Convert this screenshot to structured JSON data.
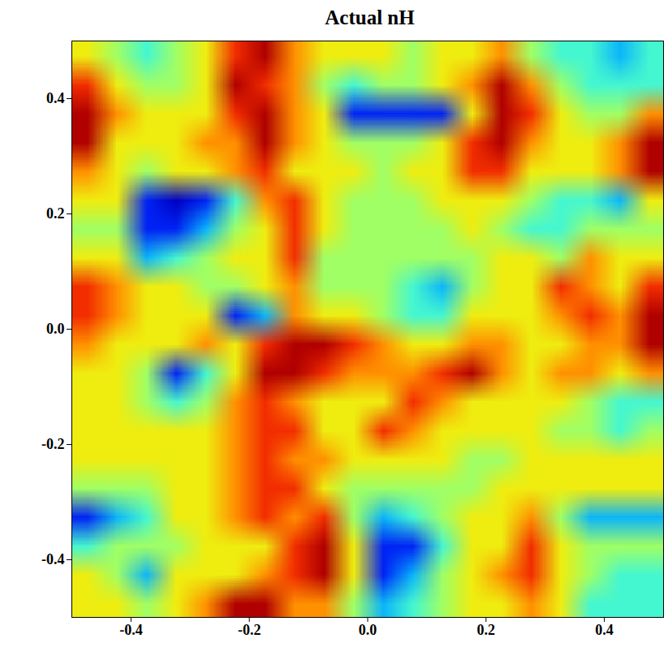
{
  "chart_data": {
    "type": "heatmap",
    "title": "Actual nH",
    "xlim": [
      -0.5,
      0.5
    ],
    "ylim": [
      -0.5,
      0.5
    ],
    "xticks": [
      {
        "value": -0.4,
        "label": "-0.4"
      },
      {
        "value": -0.2,
        "label": "-0.2"
      },
      {
        "value": 0,
        "label": "0.0"
      },
      0.2,
      0.4
    ],
    "yticks": [
      {
        "value": -0.4,
        "label": "-0.4"
      },
      {
        "value": -0.2,
        "label": "-0.2"
      },
      {
        "value": 0,
        "label": "0.0"
      },
      0.2,
      0.4
    ],
    "cells": [
      [
        5,
        4,
        3,
        4,
        5,
        7,
        8,
        6,
        5,
        5,
        5,
        4,
        5,
        5,
        6,
        4,
        3,
        3,
        2,
        3
      ],
      [
        7,
        5,
        4,
        4,
        5,
        8,
        7,
        6,
        4,
        3,
        4,
        4,
        5,
        6,
        8,
        6,
        4,
        3,
        3,
        3
      ],
      [
        8,
        6,
        5,
        5,
        5,
        7,
        8,
        6,
        5,
        1,
        1,
        1,
        1,
        5,
        8,
        7,
        5,
        4,
        4,
        6
      ],
      [
        8,
        5,
        5,
        5,
        6,
        6,
        8,
        6,
        5,
        4,
        4,
        4,
        5,
        7,
        8,
        6,
        5,
        5,
        6,
        8
      ],
      [
        6,
        5,
        4,
        5,
        5,
        6,
        7,
        5,
        5,
        5,
        4,
        5,
        5,
        7,
        7,
        5,
        5,
        5,
        6,
        8
      ],
      [
        5,
        5,
        1,
        0,
        1,
        3,
        6,
        7,
        5,
        4,
        4,
        4,
        5,
        5,
        5,
        4,
        3,
        3,
        2,
        5
      ],
      [
        4,
        4,
        1,
        1,
        2,
        4,
        5,
        7,
        5,
        4,
        4,
        4,
        4,
        5,
        4,
        3,
        3,
        4,
        4,
        4
      ],
      [
        5,
        5,
        2,
        3,
        4,
        5,
        5,
        7,
        4,
        4,
        4,
        4,
        4,
        4,
        5,
        5,
        4,
        6,
        5,
        5
      ],
      [
        7,
        6,
        5,
        5,
        4,
        4,
        5,
        6,
        4,
        4,
        4,
        3,
        2,
        4,
        5,
        5,
        7,
        6,
        5,
        7
      ],
      [
        7,
        6,
        5,
        5,
        5,
        1,
        2,
        6,
        5,
        5,
        4,
        3,
        3,
        5,
        5,
        5,
        6,
        7,
        6,
        8
      ],
      [
        6,
        5,
        5,
        5,
        6,
        5,
        7,
        8,
        8,
        7,
        6,
        5,
        5,
        6,
        6,
        5,
        5,
        6,
        6,
        8
      ],
      [
        5,
        5,
        4,
        1,
        3,
        5,
        8,
        8,
        7,
        6,
        6,
        6,
        7,
        8,
        6,
        5,
        6,
        6,
        5,
        6
      ],
      [
        5,
        5,
        4,
        3,
        4,
        6,
        7,
        6,
        5,
        5,
        5,
        7,
        6,
        5,
        5,
        5,
        5,
        4,
        3,
        3
      ],
      [
        5,
        5,
        5,
        5,
        5,
        6,
        7,
        7,
        5,
        5,
        7,
        6,
        5,
        5,
        5,
        5,
        4,
        4,
        3,
        4
      ],
      [
        5,
        5,
        5,
        5,
        5,
        6,
        7,
        6,
        6,
        5,
        5,
        5,
        5,
        4,
        4,
        5,
        5,
        5,
        5,
        5
      ],
      [
        4,
        4,
        4,
        5,
        5,
        6,
        7,
        7,
        5,
        4,
        4,
        4,
        4,
        4,
        5,
        5,
        5,
        5,
        5,
        5
      ],
      [
        1,
        2,
        3,
        5,
        5,
        6,
        7,
        6,
        7,
        4,
        2,
        3,
        4,
        5,
        5,
        6,
        4,
        2,
        2,
        2
      ],
      [
        3,
        4,
        4,
        4,
        5,
        5,
        5,
        7,
        8,
        5,
        1,
        1,
        3,
        5,
        5,
        7,
        5,
        4,
        4,
        4
      ],
      [
        5,
        4,
        2,
        5,
        5,
        5,
        6,
        7,
        8,
        5,
        1,
        2,
        4,
        5,
        6,
        7,
        5,
        4,
        3,
        3
      ],
      [
        5,
        5,
        4,
        5,
        6,
        8,
        8,
        6,
        6,
        4,
        2,
        3,
        4,
        5,
        5,
        6,
        5,
        3,
        3,
        3
      ]
    ]
  }
}
